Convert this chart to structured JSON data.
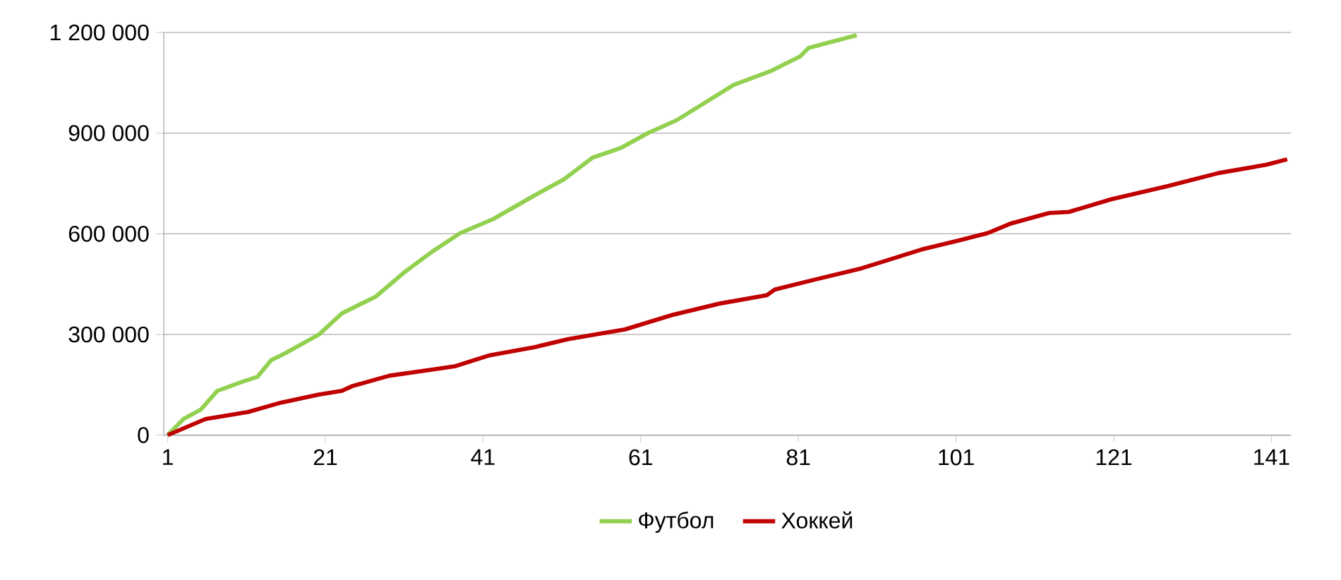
{
  "chart_data": {
    "type": "line",
    "xlim": [
      0.5,
      143.5
    ],
    "xticks": [
      1,
      21,
      41,
      61,
      81,
      101,
      121,
      141
    ],
    "ylim": [
      0,
      1200000
    ],
    "yticks": [
      0,
      {
        "value": 300000,
        "label": "300 000"
      },
      {
        "value": 600000,
        "label": "600 000"
      },
      {
        "value": 900000,
        "label": "900 000"
      },
      {
        "value": 1200000,
        "label": "1 200 000"
      }
    ],
    "grid": "y",
    "legend": "bottom",
    "marker": "none",
    "line_style": "solid",
    "series": [
      {
        "name": "Футбол",
        "color": "#92d050",
        "x": [
          1,
          3,
          5.2,
          7.3,
          10.6,
          12.4,
          14.1,
          15.9,
          20.2,
          23.1,
          27.4,
          30.9,
          34.5,
          38.1,
          42.3,
          47.5,
          51.3,
          54.9,
          58.4,
          62,
          65.6,
          68,
          72.8,
          77.6,
          81.2,
          82.3,
          88.4
        ],
        "values": [
          0,
          48000,
          76000,
          132000,
          160000,
          174000,
          223000,
          244000,
          300000,
          363000,
          413000,
          483000,
          546000,
          602000,
          644000,
          714000,
          763000,
          827000,
          855000,
          901000,
          939000,
          974000,
          1044000,
          1086000,
          1128000,
          1154000,
          1192000
        ]
      },
      {
        "name": "Хоккей",
        "color": "#c00000",
        "x": [
          1,
          3,
          5.8,
          11.2,
          15.4,
          20.2,
          23.1,
          24.4,
          29.1,
          34.5,
          37.4,
          41.7,
          47.5,
          51.8,
          59,
          65,
          71,
          77,
          78,
          83,
          89,
          94.3,
          96.6,
          101.5,
          105,
          108,
          112.8,
          115.3,
          120.7,
          127.8,
          134.3,
          140.4,
          143
        ],
        "values": [
          0,
          20000,
          48000,
          69000,
          97000,
          121000,
          132000,
          146000,
          177000,
          195000,
          205000,
          237000,
          262000,
          286000,
          315000,
          358000,
          392000,
          417000,
          434000,
          463000,
          497000,
          536000,
          553000,
          581000,
          602000,
          631000,
          662000,
          665000,
          703000,
          742000,
          781000,
          806000,
          822000
        ]
      }
    ]
  }
}
